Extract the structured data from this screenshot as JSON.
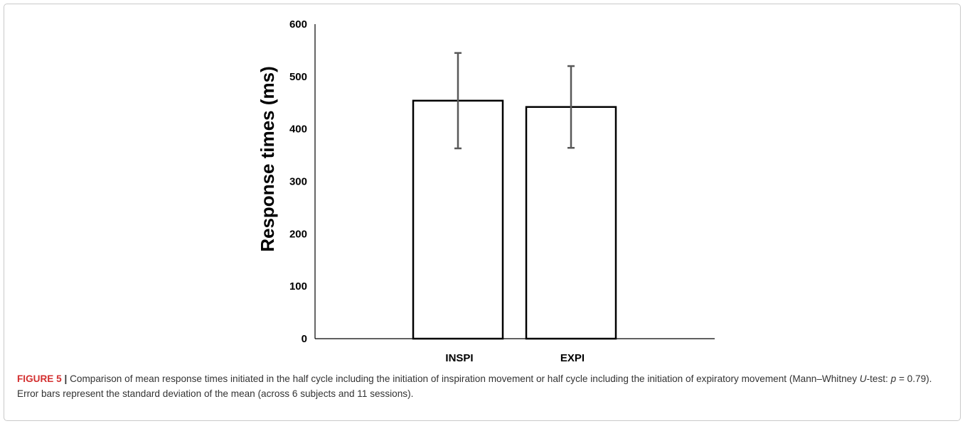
{
  "chart_data": {
    "type": "bar",
    "categories": [
      "INSPI",
      "EXPI"
    ],
    "series": [
      {
        "values": [
          454,
          442
        ],
        "error": [
          91,
          78
        ]
      }
    ],
    "ylabel": "Response times (ms)",
    "xlabel": "",
    "ylim": [
      0,
      600
    ],
    "yticks": [
      0,
      100,
      200,
      300,
      400,
      500,
      600
    ],
    "grid": false,
    "colors": {
      "bar_fill": "#ffffff",
      "bar_stroke": "#000000",
      "error_bar": "#595959",
      "axis": "#000000"
    }
  },
  "caption": {
    "label": "FIGURE 5",
    "separator": "|",
    "text_1": " Comparison of mean response times initiated in the half cycle including the initiation of inspiration movement or half cycle including the initiation of expiratory movement (Mann–Whitney ",
    "u_italic": "U",
    "text_2": "-test: ",
    "p_italic": "p",
    "text_3": " = 0.79). Error bars represent the standard deviation of the mean (across 6 subjects and 11 sessions)."
  },
  "colors": {
    "caption_label": "#d32f2f",
    "caption_text": "#333333",
    "frame_border": "#c9c9c9"
  }
}
